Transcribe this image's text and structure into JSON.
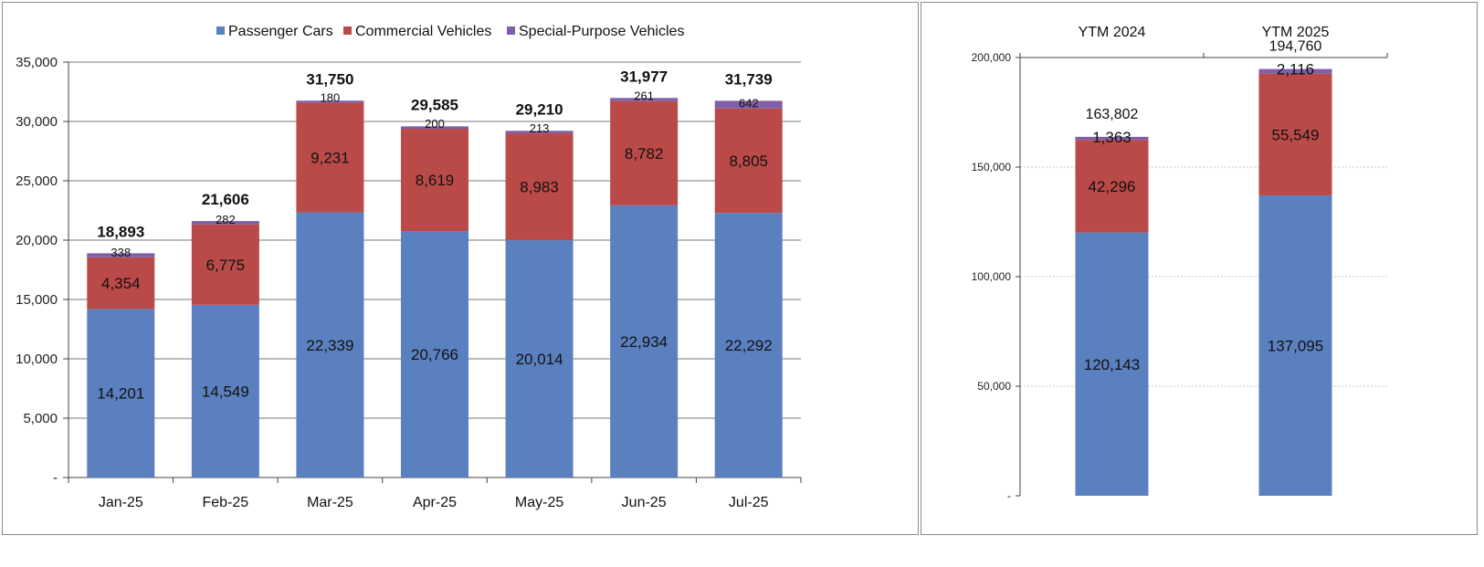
{
  "chart_data": [
    {
      "type": "bar",
      "stacked": true,
      "categories": [
        "Jan-25",
        "Feb-25",
        "Mar-25",
        "Apr-25",
        "May-25",
        "Jun-25",
        "Jul-25"
      ],
      "series": [
        {
          "name": "Passenger Cars",
          "color": "#5b80bf",
          "values": [
            14201,
            14549,
            22339,
            20766,
            20014,
            22934,
            22292
          ],
          "labels": [
            "14,201",
            "14,549",
            "22,339",
            "20,766",
            "20,014",
            "22,934",
            "22,292"
          ]
        },
        {
          "name": "Commercial Vehicles",
          "color": "#b94a48",
          "values": [
            4354,
            6775,
            9231,
            8619,
            8983,
            8782,
            8805
          ],
          "labels": [
            "4,354",
            "6,775",
            "9,231",
            "8,619",
            "8,983",
            "8,782",
            "8,805"
          ]
        },
        {
          "name": "Special-Purpose Vehicles",
          "color": "#7e5fa8",
          "values": [
            338,
            282,
            180,
            200,
            213,
            261,
            642
          ],
          "labels": [
            "338",
            "282",
            "180",
            "200",
            "213",
            "261",
            "642"
          ]
        }
      ],
      "totals": [
        "18,893",
        "21,606",
        "31,750",
        "29,585",
        "29,210",
        "31,977",
        "31,739"
      ],
      "total_values": [
        18893,
        21606,
        31750,
        29585,
        29210,
        31977,
        31739
      ],
      "ylim": [
        0,
        35000
      ],
      "yticks": [
        0,
        5000,
        10000,
        15000,
        20000,
        25000,
        30000,
        35000
      ],
      "ytick_labels": [
        "-",
        "5,000",
        "10,000",
        "15,000",
        "20,000",
        "25,000",
        "30,000",
        "35,000"
      ],
      "grid": true,
      "legend": "top"
    },
    {
      "type": "bar",
      "stacked": true,
      "categories": [
        "YTM 2024",
        "YTM 2025"
      ],
      "series": [
        {
          "name": "Passenger Cars",
          "color": "#5b80bf",
          "values": [
            120143,
            137095
          ],
          "labels": [
            "120,143",
            "137,095"
          ]
        },
        {
          "name": "Commercial Vehicles",
          "color": "#b94a48",
          "values": [
            42296,
            55549
          ],
          "labels": [
            "42,296",
            "55,549"
          ]
        },
        {
          "name": "Special-Purpose Vehicles",
          "color": "#7e5fa8",
          "values": [
            1363,
            2116
          ],
          "labels": [
            "1,363",
            "2,116"
          ]
        }
      ],
      "totals": [
        "163,802",
        "194,760"
      ],
      "total_values": [
        163802,
        194760
      ],
      "ylim": [
        0,
        200000
      ],
      "yticks": [
        0,
        50000,
        100000,
        150000,
        200000
      ],
      "ytick_labels": [
        "-",
        "50,000",
        "100,000",
        "150,000",
        "200,000"
      ],
      "grid": true,
      "xaxis_position": "top",
      "legend": "none"
    }
  ]
}
